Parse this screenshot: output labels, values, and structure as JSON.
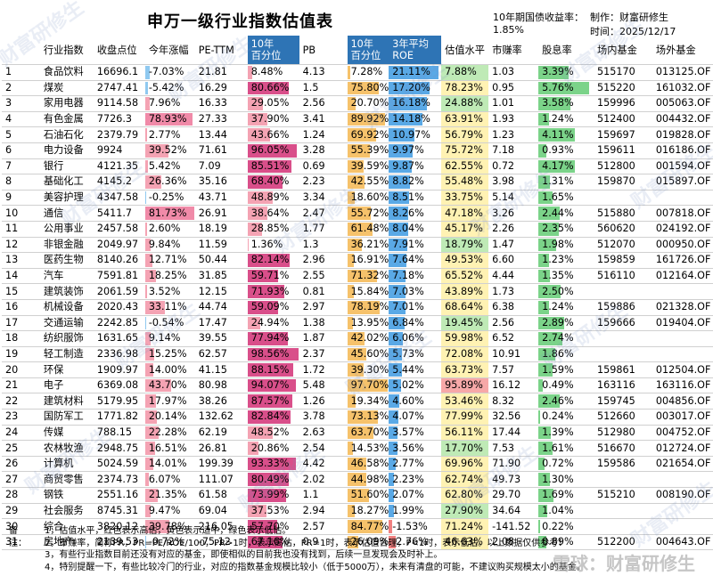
{
  "title": "申万一级行业指数估值表",
  "header_right": {
    "bond_label": "10年期国债收益率：",
    "bond_value": "1.85%",
    "maker": "制作：财富研修生",
    "time": "时间：2025/12/17"
  },
  "columns": [
    "",
    "行业指数",
    "收盘点位",
    "今年涨幅",
    "PE-TTM",
    "10年\n百分位",
    "PB",
    "10年\n百分位",
    "3年平均\nROE",
    "估值水平",
    "市赚率",
    "股息率",
    "场内基金",
    "场外基金"
  ],
  "colors": {
    "header_blue": "#2e74b5",
    "red_bar": "#f4a3b3",
    "red_bar_strong": "#d94f8a",
    "pb_bar": "#f6c26b",
    "roe_bar": "#5aa9e6",
    "roe_neg": "#f08080",
    "green_bar": "#7bd389",
    "yellow_cell": "#fff2b3",
    "red_cell": "#f7a8a8",
    "green_cell": "#bfeab6"
  },
  "rows": [
    {
      "no": "1",
      "name": "食品饮料",
      "close": "16696.1",
      "ytd": "-7.03%",
      "ytd_v": -7.03,
      "pe": "21.81",
      "pe_pct": "8.48%",
      "pe_pct_v": 8.48,
      "pb": "4.13",
      "pb_pct": "7.28%",
      "pb_pct_v": 7.28,
      "roe": "21.11%",
      "roe_v": 21.11,
      "val": "7.88%",
      "val_v": 7.88,
      "pr": "1.03",
      "div": "3.39%",
      "div_v": 3.39,
      "etf": "515170",
      "otc": "013125.OF"
    },
    {
      "no": "2",
      "name": "煤炭",
      "close": "2747.41",
      "ytd": "-5.42%",
      "ytd_v": -5.42,
      "pe": "16.29",
      "pe_pct": "80.66%",
      "pe_pct_v": 80.66,
      "pb": "1.5",
      "pb_pct": "75.80%",
      "pb_pct_v": 75.8,
      "roe": "17.20%",
      "roe_v": 17.2,
      "val": "78.23%",
      "val_v": 78.23,
      "pr": "0.95",
      "div": "5.76%",
      "div_v": 5.76,
      "etf": "515220",
      "otc": "161032.OF"
    },
    {
      "no": "3",
      "name": "家用电器",
      "close": "9114.58",
      "ytd": "7.96%",
      "ytd_v": 7.96,
      "pe": "16.33",
      "pe_pct": "29.05%",
      "pe_pct_v": 29.05,
      "pb": "2.56",
      "pb_pct": "20.70%",
      "pb_pct_v": 20.7,
      "roe": "16.18%",
      "roe_v": 16.18,
      "val": "24.88%",
      "val_v": 24.88,
      "pr": "1.01",
      "div": "3.58%",
      "div_v": 3.58,
      "etf": "159996",
      "otc": "005063.OF"
    },
    {
      "no": "4",
      "name": "有色金属",
      "close": "7726.3",
      "ytd": "78.93%",
      "ytd_v": 78.93,
      "pe": "27.33",
      "pe_pct": "37.90%",
      "pe_pct_v": 37.9,
      "pb": "3.41",
      "pb_pct": "89.92%",
      "pb_pct_v": 89.92,
      "roe": "14.18%",
      "roe_v": 14.18,
      "val": "63.91%",
      "val_v": 63.91,
      "pr": "1.93",
      "div": "1.24%",
      "div_v": 1.24,
      "etf": "512400",
      "otc": "004432.OF"
    },
    {
      "no": "5",
      "name": "石油石化",
      "close": "2379.79",
      "ytd": "2.77%",
      "ytd_v": 2.77,
      "pe": "13.44",
      "pe_pct": "43.66%",
      "pe_pct_v": 43.66,
      "pb": "1.24",
      "pb_pct": "69.92%",
      "pb_pct_v": 69.92,
      "roe": "10.97%",
      "roe_v": 10.97,
      "val": "56.79%",
      "val_v": 56.79,
      "pr": "1.23",
      "div": "4.11%",
      "div_v": 4.11,
      "etf": "159697",
      "otc": "019828.OF"
    },
    {
      "no": "6",
      "name": "电力设备",
      "close": "9924",
      "ytd": "39.52%",
      "ytd_v": 39.52,
      "pe": "71.61",
      "pe_pct": "96.05%",
      "pe_pct_v": 96.05,
      "pb": "3.28",
      "pb_pct": "55.39%",
      "pb_pct_v": 55.39,
      "roe": "9.97%",
      "roe_v": 9.97,
      "val": "75.72%",
      "val_v": 75.72,
      "pr": "7.18",
      "div": "0.93%",
      "div_v": 0.93,
      "etf": "159611",
      "otc": "016186.OF"
    },
    {
      "no": "7",
      "name": "银行",
      "close": "4121.35",
      "ytd": "5.42%",
      "ytd_v": 5.42,
      "pe": "7.09",
      "pe_pct": "85.51%",
      "pe_pct_v": 85.51,
      "pb": "0.69",
      "pb_pct": "39.59%",
      "pb_pct_v": 39.59,
      "roe": "9.87%",
      "roe_v": 9.87,
      "val": "62.55%",
      "val_v": 62.55,
      "pr": "0.72",
      "div": "4.17%",
      "div_v": 4.17,
      "etf": "512800",
      "otc": "001594.OF"
    },
    {
      "no": "8",
      "name": "基础化工",
      "close": "4145.2",
      "ytd": "26.36%",
      "ytd_v": 26.36,
      "pe": "35.16",
      "pe_pct": "68.40%",
      "pe_pct_v": 68.4,
      "pb": "2.23",
      "pb_pct": "42.55%",
      "pb_pct_v": 42.55,
      "roe": "8.82%",
      "roe_v": 8.82,
      "val": "55.48%",
      "val_v": 55.48,
      "pr": "3.98",
      "div": "1.31%",
      "div_v": 1.31,
      "etf": "159870",
      "otc": "015897.OF"
    },
    {
      "no": "9",
      "name": "美容护理",
      "close": "4347.58",
      "ytd": "-0.25%",
      "ytd_v": -0.25,
      "pe": "43.71",
      "pe_pct": "48.89%",
      "pe_pct_v": 48.89,
      "pb": "3.34",
      "pb_pct": "18.60%",
      "pb_pct_v": 18.6,
      "roe": "8.51%",
      "roe_v": 8.51,
      "val": "33.75%",
      "val_v": 33.75,
      "pr": "5.14",
      "div": "1.65%",
      "div_v": 1.65,
      "etf": "",
      "otc": ""
    },
    {
      "no": "10",
      "name": "通信",
      "close": "5411.7",
      "ytd": "81.73%",
      "ytd_v": 81.73,
      "pe": "26.91",
      "pe_pct": "38.64%",
      "pe_pct_v": 38.64,
      "pb": "2.47",
      "pb_pct": "55.72%",
      "pb_pct_v": 55.72,
      "roe": "8.26%",
      "roe_v": 8.26,
      "val": "47.18%",
      "val_v": 47.18,
      "pr": "3.26",
      "div": "2.44%",
      "div_v": 2.44,
      "etf": "515880",
      "otc": "007818.OF"
    },
    {
      "no": "11",
      "name": "公用事业",
      "close": "2457.58",
      "ytd": "2.60%",
      "ytd_v": 2.6,
      "pe": "18.19",
      "pe_pct": "28.85%",
      "pe_pct_v": 28.85,
      "pb": "1.77",
      "pb_pct": "61.48%",
      "pb_pct_v": 61.48,
      "roe": "8.04%",
      "roe_v": 8.04,
      "val": "45.17%",
      "val_v": 45.17,
      "pr": "2.26",
      "div": "2.35%",
      "div_v": 2.35,
      "etf": "560620",
      "otc": "024192.OF"
    },
    {
      "no": "12",
      "name": "非银金融",
      "close": "2049.97",
      "ytd": "9.84%",
      "ytd_v": 9.84,
      "pe": "11.59",
      "pe_pct": "1.36%",
      "pe_pct_v": 1.36,
      "pb": "1.3",
      "pb_pct": "36.21%",
      "pb_pct_v": 36.21,
      "roe": "7.91%",
      "roe_v": 7.91,
      "val": "18.79%",
      "val_v": 18.79,
      "pr": "1.47",
      "div": "1.98%",
      "div_v": 1.98,
      "etf": "512070",
      "otc": "000950.OF"
    },
    {
      "no": "13",
      "name": "医药生物",
      "close": "8140.26",
      "ytd": "12.71%",
      "ytd_v": 12.71,
      "pe": "50.44",
      "pe_pct": "82.14%",
      "pe_pct_v": 82.14,
      "pb": "2.96",
      "pb_pct": "16.91%",
      "pb_pct_v": 16.91,
      "roe": "7.64%",
      "roe_v": 7.64,
      "val": "49.53%",
      "val_v": 49.53,
      "pr": "6.60",
      "div": "1.23%",
      "div_v": 1.23,
      "etf": "159859",
      "otc": "161726.OF"
    },
    {
      "no": "14",
      "name": "汽车",
      "close": "7591.81",
      "ytd": "18.25%",
      "ytd_v": 18.25,
      "pe": "31.85",
      "pe_pct": "59.71%",
      "pe_pct_v": 59.71,
      "pb": "2.55",
      "pb_pct": "71.32%",
      "pb_pct_v": 71.32,
      "roe": "7.18%",
      "roe_v": 7.18,
      "val": "65.52%",
      "val_v": 65.52,
      "pr": "4.44",
      "div": "1.35%",
      "div_v": 1.35,
      "etf": "516110",
      "otc": "012164.OF"
    },
    {
      "no": "15",
      "name": "建筑装饰",
      "close": "2061.59",
      "ytd": "3.52%",
      "ytd_v": 3.52,
      "pe": "12.15",
      "pe_pct": "71.93%",
      "pe_pct_v": 71.93,
      "pb": "0.81",
      "pb_pct": "15.84%",
      "pb_pct_v": 15.84,
      "roe": "7.03%",
      "roe_v": 7.03,
      "val": "43.89%",
      "val_v": 43.89,
      "pr": "1.73",
      "div": "2.50%",
      "div_v": 2.5,
      "etf": "",
      "otc": ""
    },
    {
      "no": "16",
      "name": "机械设备",
      "close": "2020.43",
      "ytd": "33.11%",
      "ytd_v": 33.11,
      "pe": "44.74",
      "pe_pct": "59.09%",
      "pe_pct_v": 59.09,
      "pb": "2.97",
      "pb_pct": "78.19%",
      "pb_pct_v": 78.19,
      "roe": "7.01%",
      "roe_v": 7.01,
      "val": "68.64%",
      "val_v": 68.64,
      "pr": "6.38",
      "div": "1.24%",
      "div_v": 1.24,
      "etf": "159886",
      "otc": "021328.OF"
    },
    {
      "no": "17",
      "name": "交通运输",
      "close": "2242.85",
      "ytd": "-0.54%",
      "ytd_v": -0.54,
      "pe": "17.47",
      "pe_pct": "24.94%",
      "pe_pct_v": 24.94,
      "pb": "1.38",
      "pb_pct": "13.95%",
      "pb_pct_v": 13.95,
      "roe": "6.84%",
      "roe_v": 6.84,
      "val": "19.45%",
      "val_v": 19.45,
      "pr": "2.56",
      "div": "2.89%",
      "div_v": 2.89,
      "etf": "159666",
      "otc": "019404.OF"
    },
    {
      "no": "18",
      "name": "纺织服饰",
      "close": "1631.65",
      "ytd": "9.14%",
      "ytd_v": 9.14,
      "pe": "39.55",
      "pe_pct": "77.94%",
      "pe_pct_v": 77.94,
      "pb": "1.87",
      "pb_pct": "42.02%",
      "pb_pct_v": 42.02,
      "roe": "6.06%",
      "roe_v": 6.06,
      "val": "59.98%",
      "val_v": 59.98,
      "pr": "6.52",
      "div": "2.74%",
      "div_v": 2.74,
      "etf": "",
      "otc": ""
    },
    {
      "no": "19",
      "name": "轻工制造",
      "close": "2336.98",
      "ytd": "15.25%",
      "ytd_v": 15.25,
      "pe": "62.57",
      "pe_pct": "98.56%",
      "pe_pct_v": 98.56,
      "pb": "2.37",
      "pb_pct": "45.60%",
      "pb_pct_v": 45.6,
      "roe": "5.73%",
      "roe_v": 5.73,
      "val": "72.08%",
      "val_v": 72.08,
      "pr": "10.91",
      "div": "1.86%",
      "div_v": 1.86,
      "etf": "",
      "otc": ""
    },
    {
      "no": "20",
      "name": "环保",
      "close": "1909.97",
      "ytd": "14.00%",
      "ytd_v": 14.0,
      "pe": "41.15",
      "pe_pct": "88.15%",
      "pe_pct_v": 88.15,
      "pb": "1.72",
      "pb_pct": "39.30%",
      "pb_pct_v": 39.3,
      "roe": "5.44%",
      "roe_v": 5.44,
      "val": "63.73%",
      "val_v": 63.73,
      "pr": "7.57",
      "div": "1.59%",
      "div_v": 1.59,
      "etf": "159861",
      "otc": "012504.OF"
    },
    {
      "no": "21",
      "name": "电子",
      "close": "6369.08",
      "ytd": "43.70%",
      "ytd_v": 43.7,
      "pe": "80.98",
      "pe_pct": "94.07%",
      "pe_pct_v": 94.07,
      "pb": "5.48",
      "pb_pct": "97.70%",
      "pb_pct_v": 97.7,
      "roe": "5.02%",
      "roe_v": 5.02,
      "val": "95.89%",
      "val_v": 95.89,
      "pr": "16.12",
      "div": "0.49%",
      "div_v": 0.49,
      "etf": "163116",
      "otc": "163116.OF"
    },
    {
      "no": "22",
      "name": "建筑材料",
      "close": "5179.95",
      "ytd": "17.97%",
      "ytd_v": 17.97,
      "pe": "38.26",
      "pe_pct": "87.57%",
      "pe_pct_v": 87.57,
      "pb": "1.26",
      "pb_pct": "19.34%",
      "pb_pct_v": 19.34,
      "roe": "4.60%",
      "roe_v": 4.6,
      "val": "53.46%",
      "val_v": 53.46,
      "pr": "8.32",
      "div": "2.46%",
      "div_v": 2.46,
      "etf": "159745",
      "otc": "004856.OF"
    },
    {
      "no": "23",
      "name": "国防军工",
      "close": "1771.82",
      "ytd": "20.14%",
      "ytd_v": 20.14,
      "pe": "132.62",
      "pe_pct": "82.84%",
      "pe_pct_v": 82.84,
      "pb": "3.78",
      "pb_pct": "73.13%",
      "pb_pct_v": 73.13,
      "roe": "4.07%",
      "roe_v": 4.07,
      "val": "77.99%",
      "val_v": 77.99,
      "pr": "32.56",
      "div": "0.24%",
      "div_v": 0.24,
      "etf": "512660",
      "otc": "003017.OF"
    },
    {
      "no": "24",
      "name": "传媒",
      "close": "788.15",
      "ytd": "22.28%",
      "ytd_v": 22.28,
      "pe": "62.19",
      "pe_pct": "48.52%",
      "pe_pct_v": 48.52,
      "pb": "2.63",
      "pb_pct": "63.70%",
      "pb_pct_v": 63.7,
      "roe": "3.57%",
      "roe_v": 3.57,
      "val": "56.11%",
      "val_v": 56.11,
      "pr": "17.44",
      "div": "1.39%",
      "div_v": 1.39,
      "etf": "512980",
      "otc": "004752.OF"
    },
    {
      "no": "25",
      "name": "农林牧渔",
      "close": "2948.75",
      "ytd": "16.51%",
      "ytd_v": 16.51,
      "pe": "26.81",
      "pe_pct": "20.86%",
      "pe_pct_v": 20.86,
      "pb": "2.54",
      "pb_pct": "14.53%",
      "pb_pct_v": 14.53,
      "roe": "3.56%",
      "roe_v": 3.56,
      "val": "17.70%",
      "val_v": 17.7,
      "pr": "7.53",
      "div": "1.61%",
      "div_v": 1.61,
      "etf": "516670",
      "otc": "012724.OF"
    },
    {
      "no": "26",
      "name": "计算机",
      "close": "5024.59",
      "ytd": "14.01%",
      "ytd_v": 14.01,
      "pe": "199.39",
      "pe_pct": "93.33%",
      "pe_pct_v": 93.33,
      "pb": "4.42",
      "pb_pct": "46.58%",
      "pb_pct_v": 46.58,
      "roe": "2.77%",
      "roe_v": 2.77,
      "val": "69.96%",
      "val_v": 69.96,
      "pr": "71.90",
      "div": "0.72%",
      "div_v": 0.72,
      "etf": "159586",
      "otc": "021654.OF"
    },
    {
      "no": "27",
      "name": "商贸零售",
      "close": "2374.73",
      "ytd": "6.07%",
      "ytd_v": 6.07,
      "pe": "111.07",
      "pe_pct": "80.49%",
      "pe_pct_v": 80.49,
      "pb": "2.02",
      "pb_pct": "44.98%",
      "pb_pct_v": 44.98,
      "roe": "2.23%",
      "roe_v": 2.23,
      "val": "62.74%",
      "val_v": 62.74,
      "pr": "49.73",
      "div": "1.30%",
      "div_v": 1.3,
      "etf": "",
      "otc": ""
    },
    {
      "no": "28",
      "name": "钢铁",
      "close": "2551.16",
      "ytd": "21.35%",
      "ytd_v": 21.35,
      "pe": "61.58",
      "pe_pct": "73.99%",
      "pe_pct_v": 73.99,
      "pb": "1.1",
      "pb_pct": "51.60%",
      "pb_pct_v": 51.6,
      "roe": "2.07%",
      "roe_v": 2.07,
      "val": "62.80%",
      "val_v": 62.8,
      "pr": "29.70",
      "div": "1.69%",
      "div_v": 1.69,
      "etf": "515210",
      "otc": "008190.OF"
    },
    {
      "no": "29",
      "name": "社会服务",
      "close": "8745.31",
      "ytd": "9.47%",
      "ytd_v": 9.47,
      "pe": "69.04",
      "pe_pct": "37.53%",
      "pe_pct_v": 37.53,
      "pb": "2.94",
      "pb_pct": "18.27%",
      "pb_pct_v": 18.27,
      "roe": "1.99%",
      "roe_v": 1.99,
      "val": "27.90%",
      "val_v": 27.9,
      "pr": "34.64",
      "div": "1.04%",
      "div_v": 1.04,
      "etf": "",
      "otc": ""
    },
    {
      "no": "30",
      "name": "综合",
      "close": "3820.12",
      "ytd": "39.78%",
      "ytd_v": 39.78,
      "pe": "216.05",
      "pe_pct": "57.70%",
      "pe_pct_v": 57.7,
      "pb": "2.57",
      "pb_pct": "84.77%",
      "pb_pct_v": 84.77,
      "roe": "-1.53%",
      "roe_v": -1.53,
      "val": "71.24%",
      "val_v": 71.24,
      "pr": "-141.52",
      "div": "0.22%",
      "div_v": 0.22,
      "etf": "",
      "otc": ""
    },
    {
      "no": "31",
      "name": "房地产",
      "close": "2139.53",
      "ytd": "-0.72%",
      "ytd_v": -0.72,
      "pe": "-75.12",
      "pe_pct": "67.16%",
      "pe_pct_v": 67.16,
      "pb": "0.9",
      "pb_pct": "26.09%",
      "pb_pct_v": 26.09,
      "roe": "-2.76%",
      "roe_v": -2.76,
      "val": "46.63%",
      "val_v": 46.63,
      "pr": "2.08",
      "div": "0.89%",
      "div_v": 0.89,
      "etf": "512200",
      "otc": "004643.OF"
    }
  ],
  "notes": {
    "label": "备注：",
    "lines": [
      "1，估值水平，红色表示高估，黄色表示适中，绿色表示低估。",
      "2，市赚率，简称PR，PR=PE/ROE/100，PR>1时，表示高估，PR=1时，表示估值合理，P<1时，表示低估。以上数据仅供参考！",
      "3，有些行业指数目前还没有对应的基金，即使相似的目前我也没有找到，后续一旦发现会及时补上。",
      "4，特别提醒一下，有些比较冷门的行业，对应的指数基金规模比较小（低于5000万），未来有清盘的可能，不建议购买规模太小的基金。"
    ]
  },
  "brand": "雪球：财富研修生",
  "watermark": "财富研修生"
}
